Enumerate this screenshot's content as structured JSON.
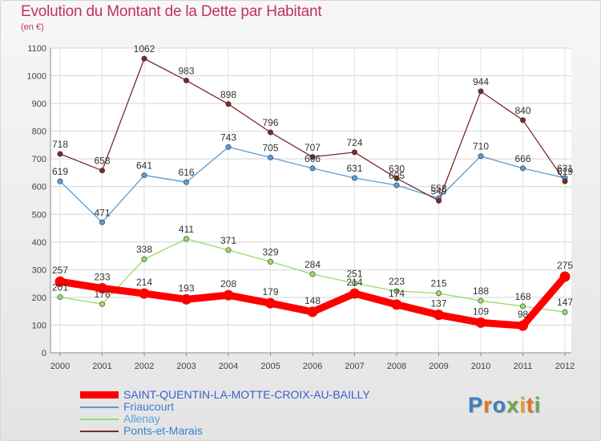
{
  "title": "Evolution du Montant de la Dette par Habitant",
  "subtitle": "(en €)",
  "logo": {
    "text": "Proxiti",
    "letter_colors": [
      "#3d7fc4",
      "#e8712a",
      "#3d7fc4",
      "#6aa84f",
      "#e8a02a",
      "#e8712a",
      "#6aa84f"
    ]
  },
  "chart_data": {
    "type": "line",
    "x": [
      "2000",
      "2001",
      "2002",
      "2003",
      "2004",
      "2005",
      "2006",
      "2007",
      "2008",
      "2009",
      "2010",
      "2011",
      "2012"
    ],
    "ylim": [
      0,
      1100
    ],
    "yticks": [
      0,
      100,
      200,
      300,
      400,
      500,
      600,
      700,
      800,
      900,
      1000,
      1100
    ],
    "grid": true,
    "legend_position": "bottom-left",
    "series": [
      {
        "name": "SAINT-QUENTIN-LA-MOTTE-CROIX-AU-BAILLY",
        "color": "#ff0000",
        "emphasis": true,
        "values": [
          257,
          233,
          214,
          193,
          208,
          179,
          148,
          214,
          174,
          137,
          109,
          98,
          275
        ]
      },
      {
        "name": "Friaucourt",
        "color": "#5b9bd5",
        "values": [
          619,
          471,
          641,
          616,
          743,
          705,
          666,
          631,
          605,
          558,
          710,
          666,
          631
        ]
      },
      {
        "name": "Allenay",
        "color": "#99dd66",
        "values": [
          201,
          176,
          338,
          411,
          371,
          329,
          284,
          251,
          223,
          215,
          188,
          168,
          147
        ]
      },
      {
        "name": "Ponts-et-Marais",
        "color": "#7a2a2a",
        "values": [
          718,
          658,
          1062,
          983,
          898,
          796,
          707,
          724,
          630,
          549,
          944,
          840,
          619
        ]
      }
    ]
  }
}
